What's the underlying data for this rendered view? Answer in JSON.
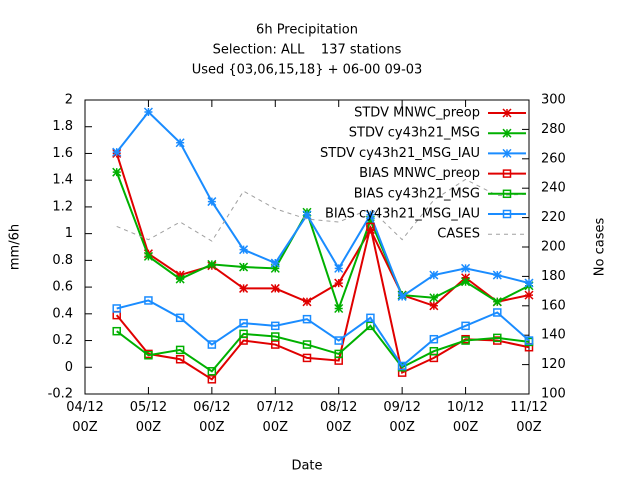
{
  "chart_data": {
    "type": "line",
    "title": "6h Precipitation",
    "subtitle": "Selection: ALL    137 stations",
    "annotation": "Used {03,06,15,18} + 06-00 09-03",
    "x_label": "Date",
    "y_label": "mm/6h",
    "y2_label": "No cases",
    "categories": [
      "04/12\n00Z",
      null,
      "05/12\n00Z",
      null,
      "06/12\n00Z",
      null,
      "07/12\n00Z",
      null,
      "08/12\n00Z",
      null,
      "09/12\n00Z",
      null,
      "10/12\n00Z",
      null,
      "11/12\n00Z"
    ],
    "ylim": [
      -0.2,
      2
    ],
    "yticks": [
      -0.2,
      0,
      0.2,
      0.4,
      0.6,
      0.8,
      1,
      1.2,
      1.4,
      1.6,
      1.8,
      2
    ],
    "y2lim": [
      100,
      300
    ],
    "y2ticks": [
      100,
      120,
      140,
      160,
      180,
      200,
      220,
      240,
      260,
      280,
      300
    ],
    "grid": false,
    "legend": "top-right",
    "series": [
      {
        "name": "STDV MNWC_preop",
        "color": "#e00000",
        "marker": "star",
        "values": [
          null,
          1.6,
          0.85,
          0.69,
          0.76,
          0.59,
          0.59,
          0.49,
          0.63,
          1.03,
          0.54,
          0.46,
          0.67,
          0.49,
          0.54
        ]
      },
      {
        "name": "STDV cy43h21_MSG",
        "color": "#00b000",
        "marker": "star",
        "values": [
          null,
          1.46,
          0.83,
          0.66,
          0.77,
          0.75,
          0.74,
          1.16,
          0.44,
          1.1,
          0.54,
          0.52,
          0.64,
          0.49,
          0.61
        ]
      },
      {
        "name": "STDV cy43h21_MSG_IAU",
        "color": "#1a8cff",
        "marker": "star",
        "values": [
          null,
          1.61,
          1.91,
          1.68,
          1.24,
          0.88,
          0.78,
          1.14,
          0.74,
          1.14,
          0.53,
          0.69,
          0.74,
          0.69,
          0.63
        ]
      },
      {
        "name": "BIAS MNWC_preop",
        "color": "#e00000",
        "marker": "square",
        "values": [
          null,
          0.39,
          0.1,
          0.06,
          -0.09,
          0.2,
          0.17,
          0.07,
          0.05,
          1.05,
          -0.04,
          0.07,
          0.21,
          0.2,
          0.15
        ]
      },
      {
        "name": "BIAS cy43h21_MSG",
        "color": "#00b000",
        "marker": "square",
        "values": [
          null,
          0.27,
          0.09,
          0.13,
          -0.03,
          0.25,
          0.23,
          0.17,
          0.1,
          0.31,
          0,
          0.12,
          0.2,
          0.22,
          0.19
        ]
      },
      {
        "name": "BIAS cy43h21_MSG_IAU",
        "color": "#1a8cff",
        "marker": "square",
        "values": [
          null,
          0.44,
          0.5,
          0.37,
          0.17,
          0.33,
          0.31,
          0.36,
          0.2,
          0.37,
          0.01,
          0.21,
          0.31,
          0.41,
          0.2
        ]
      },
      {
        "name": "CASES",
        "color": "#a0a0a0",
        "marker": "none",
        "dashed": true,
        "axis": "y2",
        "values": [
          null,
          214,
          205,
          217,
          204,
          238,
          226,
          219,
          217,
          226,
          205,
          232,
          246,
          235,
          236
        ]
      }
    ]
  }
}
